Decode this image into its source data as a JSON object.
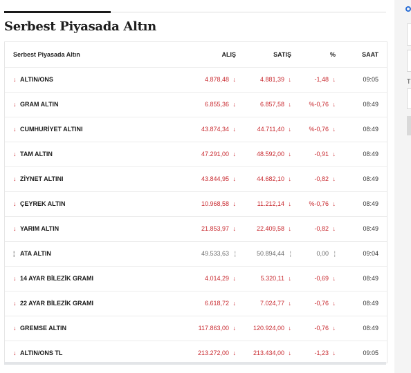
{
  "section_title": "Serbest Piyasada Altın",
  "table": {
    "headers": {
      "name": "Serbest Piyasada Altın",
      "alis": "ALIŞ",
      "satis": "SATIŞ",
      "pct": "%",
      "saat": "SAAT"
    },
    "rows": [
      {
        "dir": "down",
        "arrow": "↓",
        "name": "ALTIN/ONS",
        "alis": "4.878,48",
        "alis_arrow": "↓",
        "satis": "4.881,39",
        "satis_arrow": "↓",
        "pct": "-1,48",
        "pct_arrow": "↓",
        "saat": "09:05"
      },
      {
        "dir": "down",
        "arrow": "↓",
        "name": "GRAM ALTIN",
        "alis": "6.855,36",
        "alis_arrow": "↓",
        "satis": "6.857,58",
        "satis_arrow": "↓",
        "pct": "%-0,76",
        "pct_arrow": "↓",
        "saat": "08:49"
      },
      {
        "dir": "down",
        "arrow": "↓",
        "name": "CUMHURİYET ALTINI",
        "alis": "43.874,34",
        "alis_arrow": "↓",
        "satis": "44.711,40",
        "satis_arrow": "↓",
        "pct": "%-0,76",
        "pct_arrow": "↓",
        "saat": "08:49"
      },
      {
        "dir": "down",
        "arrow": "↓",
        "name": "TAM ALTIN",
        "alis": "47.291,00",
        "alis_arrow": "↓",
        "satis": "48.592,00",
        "satis_arrow": "↓",
        "pct": "-0,91",
        "pct_arrow": "↓",
        "saat": "08:49"
      },
      {
        "dir": "down",
        "arrow": "↓",
        "name": "ZİYNET ALTINI",
        "alis": "43.844,95",
        "alis_arrow": "↓",
        "satis": "44.682,10",
        "satis_arrow": "↓",
        "pct": "-0,82",
        "pct_arrow": "↓",
        "saat": "08:49"
      },
      {
        "dir": "down",
        "arrow": "↓",
        "name": "ÇEYREK ALTIN",
        "alis": "10.968,58",
        "alis_arrow": "↓",
        "satis": "11.212,14",
        "satis_arrow": "↓",
        "pct": "%-0,76",
        "pct_arrow": "↓",
        "saat": "08:49"
      },
      {
        "dir": "down",
        "arrow": "↓",
        "name": "YARIM ALTIN",
        "alis": "21.853,97",
        "alis_arrow": "↓",
        "satis": "22.409,58",
        "satis_arrow": "↓",
        "pct": "-0,82",
        "pct_arrow": "↓",
        "saat": "08:49"
      },
      {
        "dir": "neutral",
        "arrow": "¦",
        "name": "ATA ALTIN",
        "alis": "49.533,63",
        "alis_arrow": "¦",
        "satis": "50.894,44",
        "satis_arrow": "¦",
        "pct": "0,00",
        "pct_arrow": "¦",
        "saat": "09:04"
      },
      {
        "dir": "down",
        "arrow": "↓",
        "name": "14 AYAR BİLEZİK GRAMI",
        "alis": "4.014,29",
        "alis_arrow": "↓",
        "satis": "5.320,11",
        "satis_arrow": "↓",
        "pct": "-0,69",
        "pct_arrow": "↓",
        "saat": "08:49"
      },
      {
        "dir": "down",
        "arrow": "↓",
        "name": "22 AYAR BİLEZİK GRAMI",
        "alis": "6.618,72",
        "alis_arrow": "↓",
        "satis": "7.024,77",
        "satis_arrow": "↓",
        "pct": "-0,76",
        "pct_arrow": "↓",
        "saat": "08:49"
      },
      {
        "dir": "down",
        "arrow": "↓",
        "name": "GREMSE ALTIN",
        "alis": "117.863,00",
        "alis_arrow": "↓",
        "satis": "120.924,00",
        "satis_arrow": "↓",
        "pct": "-0,76",
        "pct_arrow": "↓",
        "saat": "08:49"
      },
      {
        "dir": "down",
        "arrow": "↓",
        "name": "ALTIN/ONS TL",
        "alis": "213.272,00",
        "alis_arrow": "↓",
        "satis": "213.434,00",
        "satis_arrow": "↓",
        "pct": "-1,23",
        "pct_arrow": "↓",
        "saat": "09:05"
      }
    ]
  },
  "sidebar": {
    "label_fragment": "T"
  },
  "colors": {
    "down": "#c8282e",
    "neutral": "#8a8a8a",
    "accent": "#2b6fd6"
  },
  "icons": {
    "down": "arrow-down-icon",
    "neutral": "neutral-bar-icon"
  }
}
